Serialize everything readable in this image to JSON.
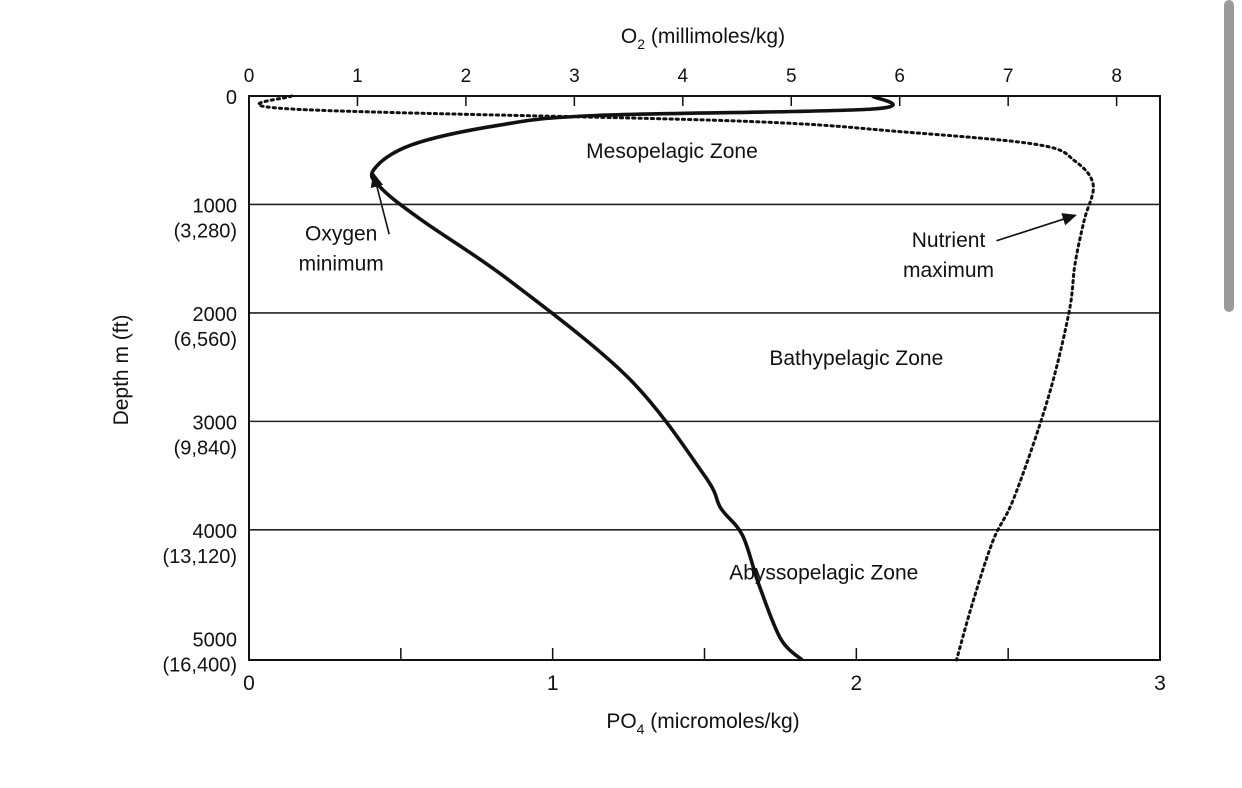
{
  "chart_data": {
    "type": "line",
    "title": "",
    "top_axis": {
      "label_main": "O",
      "label_sub": "2",
      "label_rest": " (millimoles/kg)",
      "range": [
        0,
        8.4
      ],
      "ticks": [
        "0",
        "1",
        "2",
        "3",
        "4",
        "5",
        "6",
        "7",
        "8"
      ]
    },
    "bottom_axis": {
      "label_main": "PO",
      "label_sub": "4",
      "label_rest": " (micromoles/kg)",
      "range": [
        0,
        3
      ],
      "ticks": [
        "0",
        "1",
        "2",
        "3"
      ]
    },
    "y_axis": {
      "label": "Depth m (ft)",
      "range": [
        0,
        5200
      ],
      "inverted": true,
      "ticks": [
        {
          "value": 0,
          "meters": "0",
          "feet": ""
        },
        {
          "value": 1000,
          "meters": "1000",
          "feet": "(3,280)"
        },
        {
          "value": 2000,
          "meters": "2000",
          "feet": "(6,560)"
        },
        {
          "value": 3000,
          "meters": "3000",
          "feet": "(9,840)"
        },
        {
          "value": 4000,
          "meters": "4000",
          "feet": "(13,120)"
        },
        {
          "value": 5000,
          "meters": "5000",
          "feet": "(16,400)"
        }
      ]
    },
    "zone_boundaries": [
      1000,
      2000,
      3000,
      4000
    ],
    "series": [
      {
        "name": "",
        "axis": "top",
        "style": "solid",
        "color": "#111111",
        "points": [
          [
            5.75,
            0
          ],
          [
            5.75,
            120
          ],
          [
            3.2,
            180
          ],
          [
            2.3,
            270
          ],
          [
            1.5,
            450
          ],
          [
            1.15,
            680
          ],
          [
            1.22,
            850
          ],
          [
            1.6,
            1150
          ],
          [
            2.4,
            1700
          ],
          [
            3.5,
            2600
          ],
          [
            4.2,
            3500
          ],
          [
            4.35,
            3800
          ],
          [
            4.55,
            4050
          ],
          [
            4.7,
            4500
          ],
          [
            4.9,
            5000
          ],
          [
            5.1,
            5200
          ]
        ]
      },
      {
        "name": "",
        "axis": "bottom",
        "style": "dotted",
        "color": "#111111",
        "points": [
          [
            0.14,
            0
          ],
          [
            0.14,
            120
          ],
          [
            1.6,
            230
          ],
          [
            2.15,
            330
          ],
          [
            2.6,
            450
          ],
          [
            2.72,
            600
          ],
          [
            2.78,
            820
          ],
          [
            2.75,
            1150
          ],
          [
            2.72,
            1550
          ],
          [
            2.7,
            2000
          ],
          [
            2.63,
            2800
          ],
          [
            2.52,
            3700
          ],
          [
            2.45,
            4100
          ],
          [
            2.38,
            4700
          ],
          [
            2.33,
            5200
          ]
        ]
      }
    ],
    "annotations": [
      {
        "lines": [
          "Mesopelagic Zone"
        ],
        "x_top": 3.9,
        "depth": 570
      },
      {
        "lines": [
          "Bathypelagic Zone"
        ],
        "x_top": 5.6,
        "depth": 2480
      },
      {
        "lines": [
          "Abyssopelagic Zone"
        ],
        "x_top": 5.3,
        "depth": 4460
      },
      {
        "lines": [
          "Oxygen",
          "minimum"
        ],
        "x_top": 0.85,
        "depth": 1330,
        "arrow_to": [
          1.15,
          720
        ]
      },
      {
        "lines": [
          "Nutrient",
          "maximum"
        ],
        "x_top": 6.45,
        "depth": 1390,
        "arrow_to": [
          7.62,
          1100
        ]
      }
    ],
    "grid": false,
    "legend": "none"
  }
}
